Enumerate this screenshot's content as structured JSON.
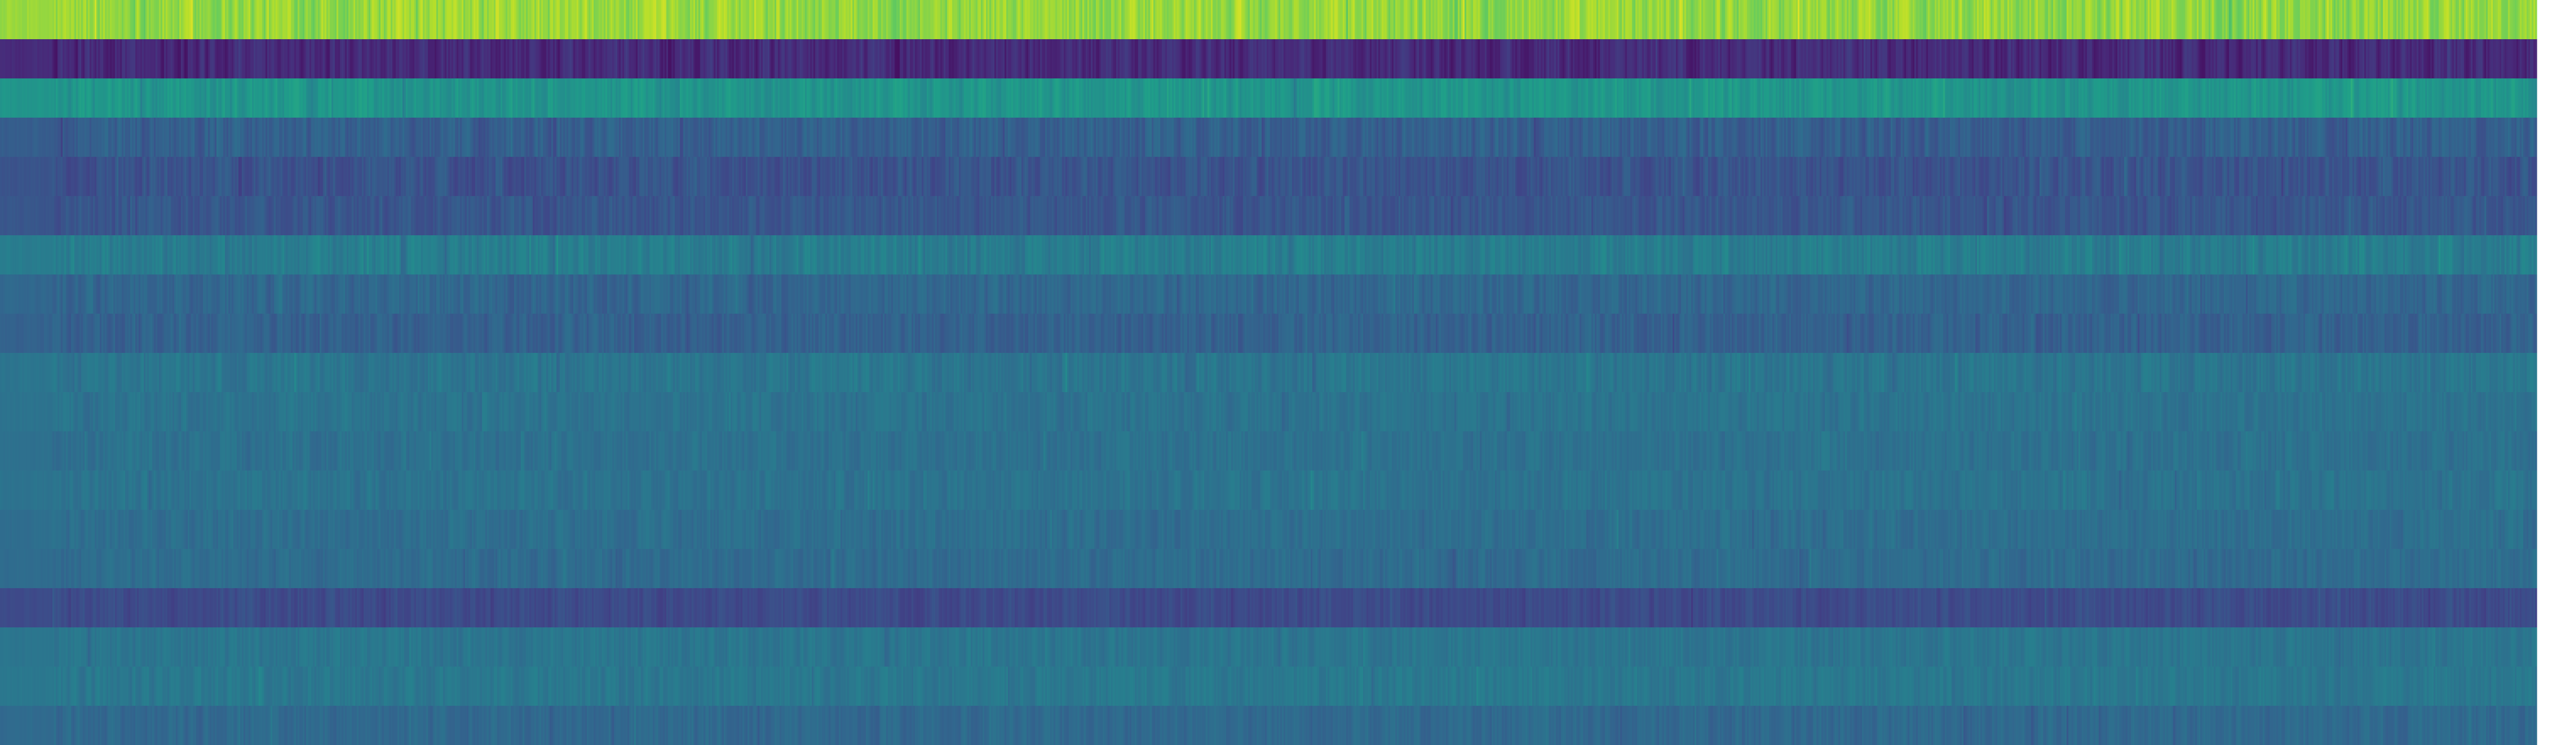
{
  "chart_data": {
    "type": "heatmap",
    "title": "",
    "xlabel": "",
    "ylabel": "",
    "colormap": "viridis",
    "axes_visible": false,
    "grid": false,
    "legend": "none",
    "n_rows": 19,
    "n_columns": 1500,
    "row_mean_levels": [
      0.84,
      0.12,
      0.52,
      0.3,
      0.26,
      0.27,
      0.42,
      0.33,
      0.31,
      0.39,
      0.38,
      0.37,
      0.38,
      0.36,
      0.35,
      0.23,
      0.39,
      0.4,
      0.34
    ],
    "row_variation": [
      0.1,
      0.08,
      0.07,
      0.07,
      0.07,
      0.06,
      0.07,
      0.06,
      0.06,
      0.06,
      0.05,
      0.05,
      0.05,
      0.05,
      0.05,
      0.05,
      0.05,
      0.05,
      0.05
    ],
    "value_range": [
      0,
      1
    ]
  },
  "colors": {
    "viridis": [
      "#440154",
      "#482878",
      "#3e4989",
      "#31688e",
      "#26828e",
      "#1f9e89",
      "#35b779",
      "#6ece58",
      "#b5de2b",
      "#fde725"
    ],
    "background": "#ffffff"
  }
}
